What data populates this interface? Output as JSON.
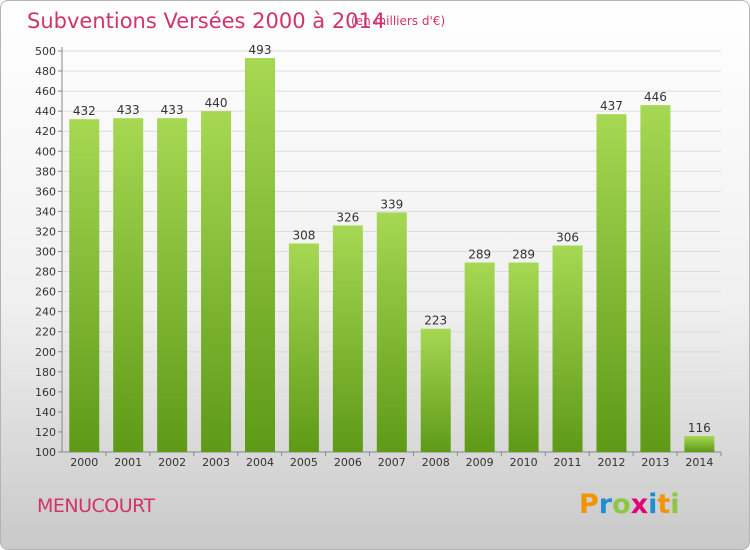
{
  "title": "Subventions Versées 2000 à 2014",
  "subtitle": "(en milliers d'€)",
  "city": "MENUCOURT",
  "brand": {
    "letters": [
      "P",
      "r",
      "o",
      "x",
      "i",
      "t",
      "i"
    ],
    "colors": [
      "#f29400",
      "#1d8fd1",
      "#8dc63f",
      "#e2007a",
      "#1d8fd1",
      "#f29400",
      "#8dc63f"
    ]
  },
  "colors": {
    "bar_top": "#a6d853",
    "bar_bottom": "#5e9a16",
    "title": "#d2336a"
  },
  "chart_data": {
    "type": "bar",
    "title": "Subventions Versées 2000 à 2014",
    "categories": [
      "2000",
      "2001",
      "2002",
      "2003",
      "2004",
      "2005",
      "2006",
      "2007",
      "2008",
      "2009",
      "2010",
      "2011",
      "2012",
      "2013",
      "2014"
    ],
    "values": [
      432,
      433,
      433,
      440,
      493,
      308,
      326,
      339,
      223,
      289,
      289,
      306,
      437,
      446,
      116
    ],
    "data_labels": [
      "432",
      "433",
      "433",
      "440",
      "493",
      "308",
      "326",
      "339",
      "223",
      "289",
      "289",
      "306",
      "437",
      "446",
      "116"
    ],
    "ylim": [
      100,
      500
    ],
    "yticks": [
      100,
      120,
      140,
      160,
      180,
      200,
      220,
      240,
      260,
      280,
      300,
      320,
      340,
      360,
      380,
      400,
      420,
      440,
      460,
      480,
      500
    ],
    "xlabel": "",
    "ylabel": "",
    "grid": true,
    "legend": "none"
  }
}
